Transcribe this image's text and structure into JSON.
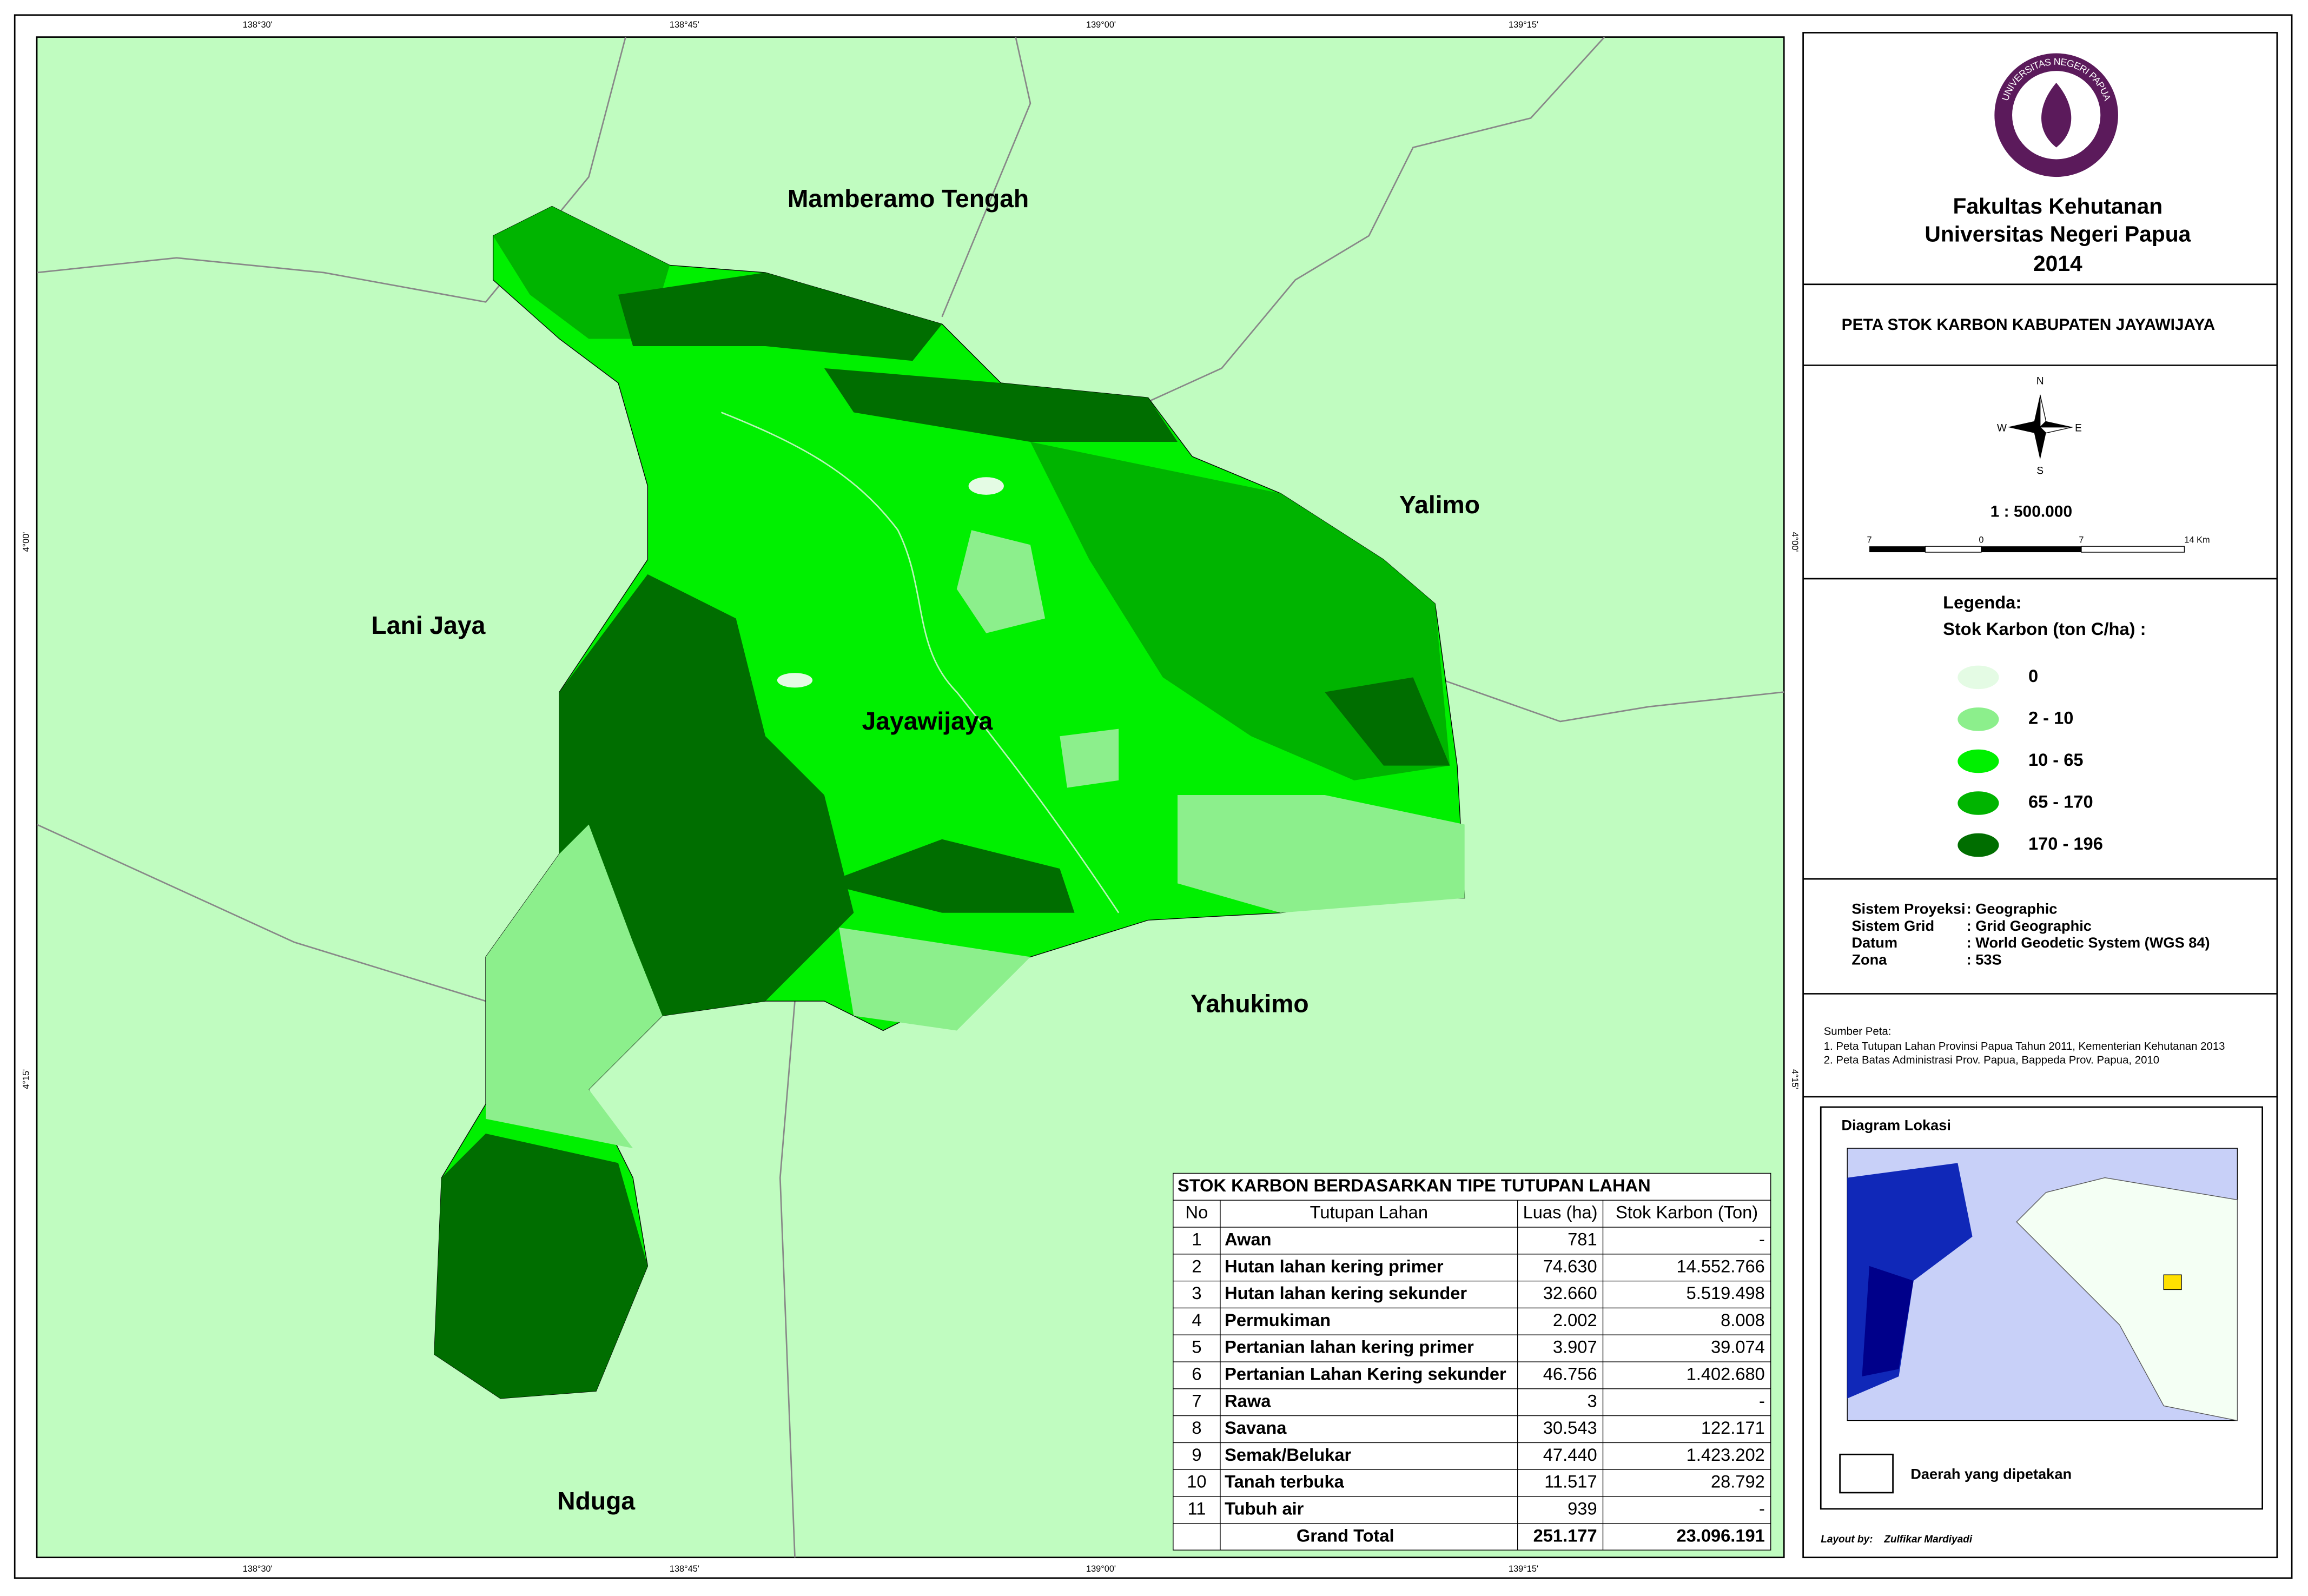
{
  "header": {
    "lines": [
      "Fakultas Kehutanan",
      "Universitas Negeri Papua",
      "2014"
    ],
    "logo_text": "UNIVERSITAS NEGERI PAPUA"
  },
  "map_title": "PETA STOK KARBON KABUPATEN JAYAWIJAYA",
  "compass": {
    "n": "N",
    "s": "S",
    "e": "E",
    "w": "W"
  },
  "scale": {
    "text": "1 : 500.000",
    "bar_labels": [
      "7",
      "0",
      "7",
      "14 Km"
    ]
  },
  "legend": {
    "title": "Legenda:",
    "subtitle": "Stok Karbon (ton C/ha) :",
    "items": [
      {
        "label": "0",
        "color": "#e4fbe4"
      },
      {
        "label": "2 - 10",
        "color": "#8cef8c"
      },
      {
        "label": "10 - 65",
        "color": "#00f000"
      },
      {
        "label": "65 - 170",
        "color": "#00b400"
      },
      {
        "label": "170 - 196",
        "color": "#006e00"
      }
    ]
  },
  "projection": [
    [
      "Sistem Proyeksi",
      ": Geographic"
    ],
    [
      "Sistem Grid",
      ": Grid Geographic"
    ],
    [
      "Datum",
      ": World Geodetic System (WGS 84)"
    ],
    [
      "Zona",
      ": 53S"
    ]
  ],
  "sources": {
    "title": "Sumber Peta:",
    "items": [
      "1. Peta Tutupan Lahan Provinsi Papua Tahun 2011, Kementerian Kehutanan 2013",
      "2. Peta Batas Administrasi Prov. Papua, Bappeda Prov. Papua, 2010"
    ]
  },
  "locator": {
    "title": "Diagram Lokasi",
    "legend": "Daerah yang dipetakan"
  },
  "credit": {
    "label": "Layout by:",
    "name": "Zulfikar Mardiyadi"
  },
  "regions": [
    "Mamberamo Tengah",
    "Yalimo",
    "Lani Jaya",
    "Jayawijaya",
    "Yahukimo",
    "Nduga"
  ],
  "grid": {
    "lon_labels": [
      "138°30'",
      "138°45'",
      "139°00'",
      "139°15'"
    ],
    "lat_labels": [
      "4°00'",
      "4°15'"
    ]
  },
  "table": {
    "title": "STOK KARBON BERDASARKAN TIPE TUTUPAN LAHAN",
    "header": [
      "No",
      "Tutupan Lahan",
      "Luas (ha)",
      "Stok Karbon (Ton)"
    ],
    "rows": [
      [
        "1",
        "Awan",
        "781",
        "-"
      ],
      [
        "2",
        "Hutan lahan kering primer",
        "74.630",
        "14.552.766"
      ],
      [
        "3",
        "Hutan lahan kering sekunder",
        "32.660",
        "5.519.498"
      ],
      [
        "4",
        "Permukiman",
        "2.002",
        "8.008"
      ],
      [
        "5",
        "Pertanian lahan kering primer",
        "3.907",
        "39.074"
      ],
      [
        "6",
        "Pertanian Lahan Kering sekunder",
        "46.756",
        "1.402.680"
      ],
      [
        "7",
        "Rawa",
        "3",
        "-"
      ],
      [
        "8",
        "Savana",
        "30.543",
        "122.171"
      ],
      [
        "9",
        "Semak/Belukar",
        "47.440",
        "1.423.202"
      ],
      [
        "10",
        "Tanah terbuka",
        "11.517",
        "28.792"
      ],
      [
        "11",
        "Tubuh air",
        "939",
        "-"
      ]
    ],
    "total": [
      "Grand Total",
      "251.177",
      "23.096.191"
    ]
  }
}
